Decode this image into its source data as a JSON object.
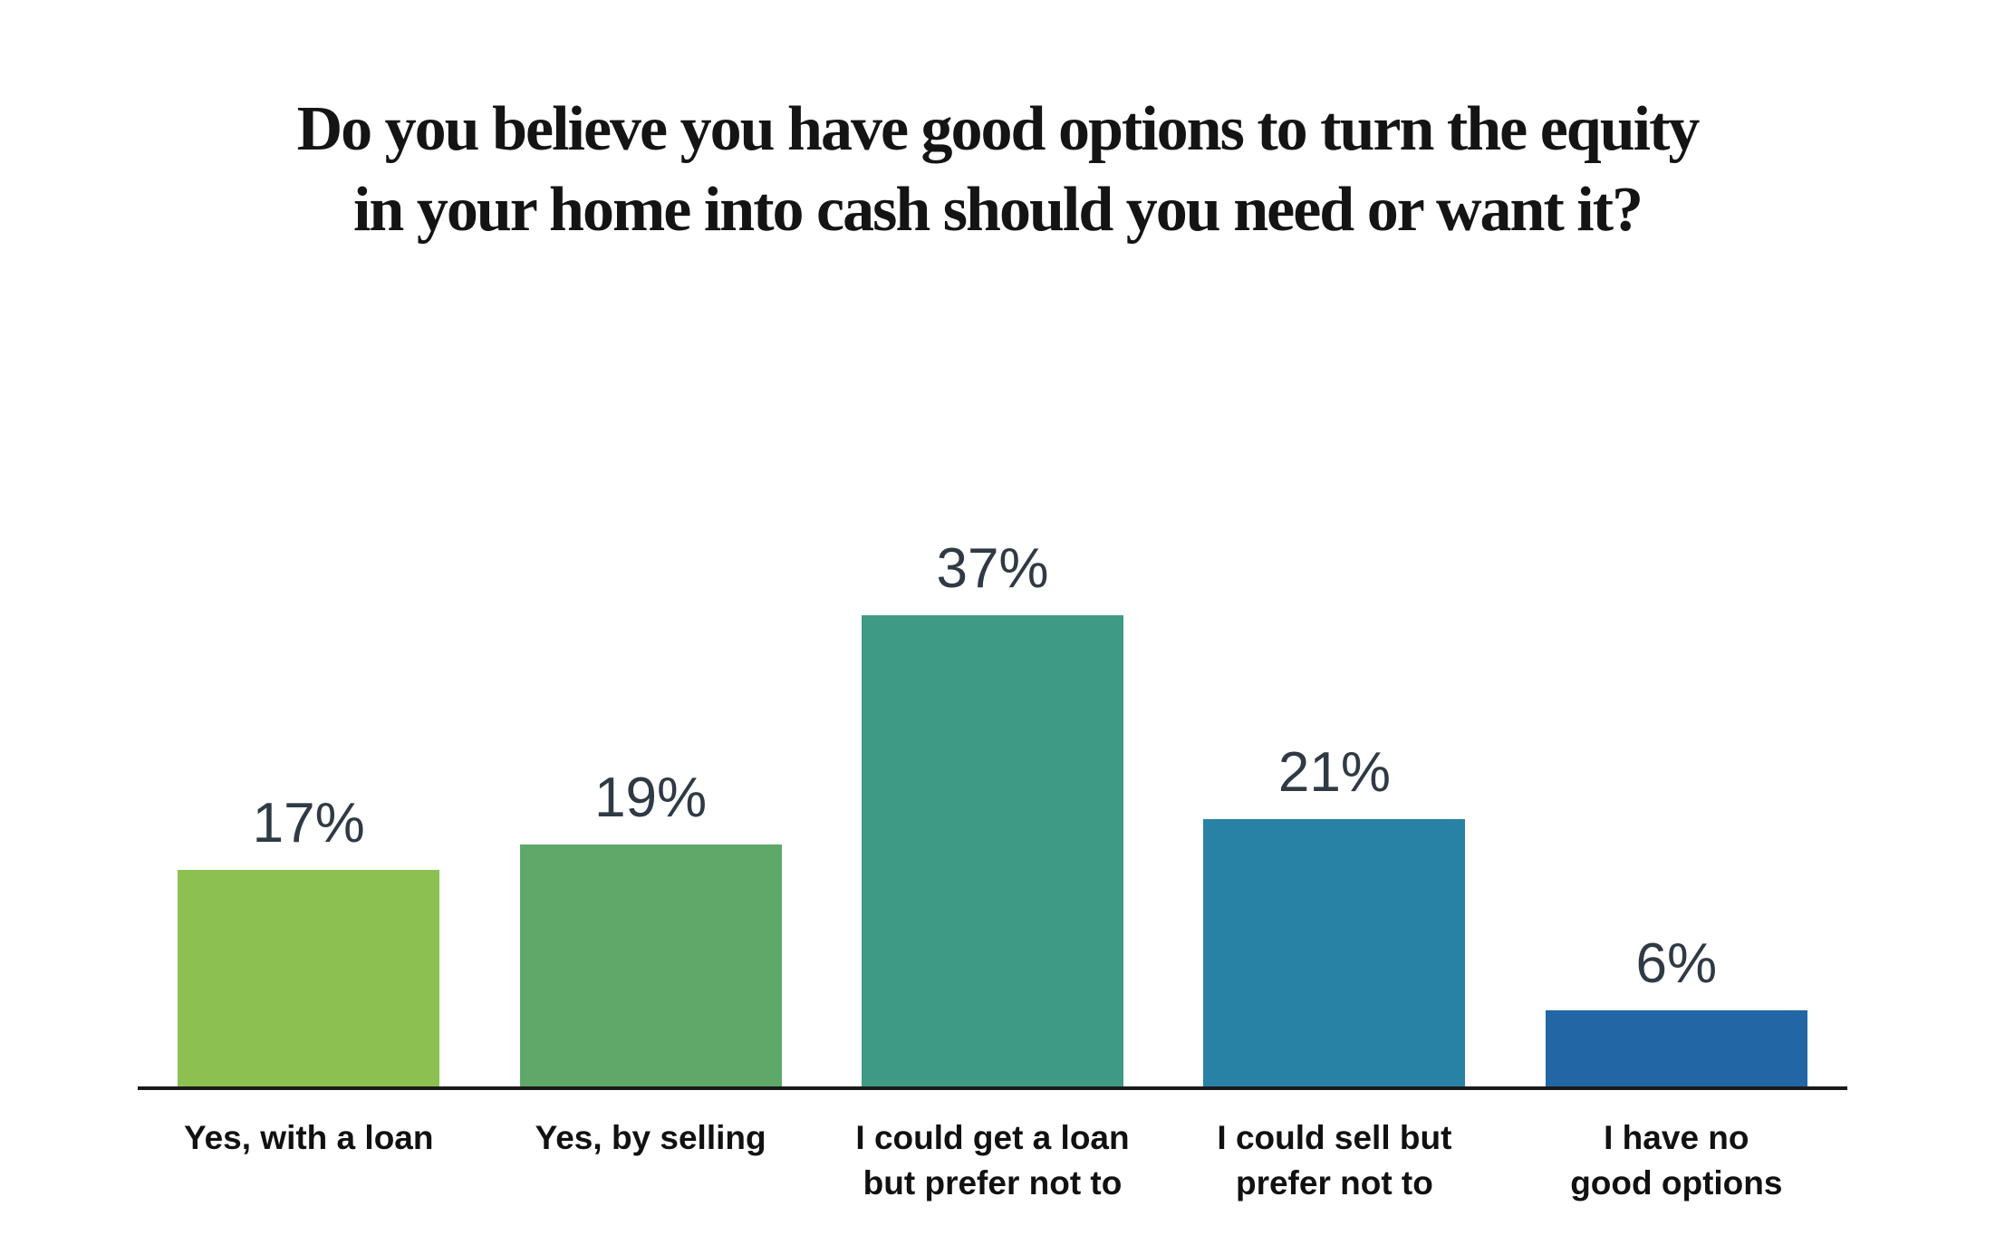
{
  "title_lines": [
    "Do you believe you have good options to turn the equity",
    "in your home into cash should you need or want it?"
  ],
  "chart_data": {
    "type": "bar",
    "title": "Do you believe you have good options to turn the equity in your home into cash should you need or want it?",
    "categories": [
      "Yes, with a loan",
      "Yes, by selling",
      "I could get a loan but prefer not to",
      "I could sell but prefer not to",
      "I have no good options"
    ],
    "category_lines": [
      [
        "Yes, with a loan"
      ],
      [
        "Yes, by selling"
      ],
      [
        "I could get a loan",
        "but prefer not to"
      ],
      [
        "I could sell but",
        "prefer not to"
      ],
      [
        "I have no",
        "good options"
      ]
    ],
    "values": [
      17,
      19,
      37,
      21,
      6
    ],
    "value_labels": [
      "17%",
      "19%",
      "37%",
      "21%",
      "6%"
    ],
    "bar_colors": [
      "#8CC152",
      "#5EA96A",
      "#3F9A84",
      "#2882A5",
      "#2366A6"
    ],
    "xlabel": "",
    "ylabel": "",
    "ylim": [
      0,
      40
    ],
    "grid": false,
    "legend": false,
    "value_label_color": "#2F3A45",
    "category_label_color": "#111111",
    "axis_line_color": "#1A1A1A",
    "background_color": "#FFFFFF"
  }
}
